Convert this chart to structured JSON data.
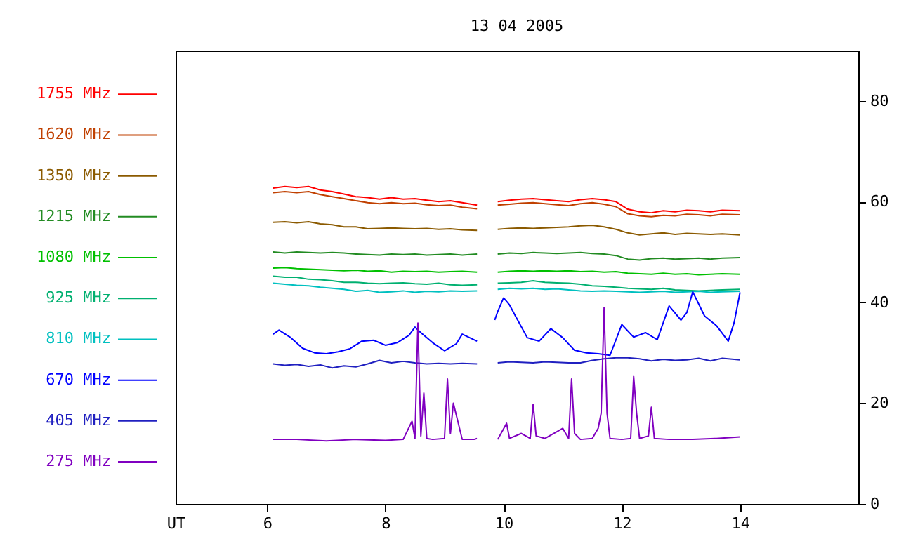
{
  "chart_data": {
    "type": "line",
    "title": "13 04 2005",
    "xlabel": "UT",
    "xlim": [
      4.45,
      16.0
    ],
    "xticks": [
      6,
      8,
      10,
      12,
      14
    ],
    "ylim": [
      0,
      90
    ],
    "yticks": [
      0,
      20,
      40,
      60,
      80
    ],
    "grid": false,
    "legend": "left",
    "marker": "none",
    "line_style": "solid",
    "x": [
      6.1,
      6.3,
      6.5,
      6.7,
      6.9,
      7.1,
      7.3,
      7.5,
      7.7,
      7.9,
      8.1,
      8.3,
      8.5,
      8.7,
      8.9,
      9.1,
      9.3,
      9.55,
      9.7,
      9.9,
      10.1,
      10.3,
      10.5,
      10.7,
      10.9,
      11.1,
      11.3,
      11.5,
      11.7,
      11.9,
      12.1,
      12.3,
      12.5,
      12.7,
      12.9,
      13.1,
      13.3,
      13.5,
      13.7,
      14.0
    ],
    "series": [
      {
        "name": "1755 MHz",
        "color": "#ff0000",
        "values": [
          62.7,
          63.0,
          62.8,
          63.0,
          62.3,
          62.0,
          61.5,
          61.0,
          60.8,
          60.5,
          60.8,
          60.5,
          60.6,
          60.3,
          60.0,
          60.2,
          59.8,
          59.3,
          null,
          60.0,
          60.3,
          60.5,
          60.6,
          60.4,
          60.2,
          60.0,
          60.4,
          60.6,
          60.4,
          60.0,
          58.5,
          58.0,
          57.8,
          58.2,
          58.0,
          58.3,
          58.2,
          58.0,
          58.3,
          58.2
        ]
      },
      {
        "name": "1620 MHz",
        "color": "#c04000",
        "values": [
          61.8,
          62.0,
          61.8,
          62.0,
          61.4,
          61.0,
          60.6,
          60.2,
          59.8,
          59.6,
          59.8,
          59.6,
          59.7,
          59.4,
          59.2,
          59.3,
          58.9,
          58.6,
          null,
          59.3,
          59.5,
          59.7,
          59.8,
          59.6,
          59.4,
          59.2,
          59.6,
          59.8,
          59.5,
          59.0,
          57.6,
          57.2,
          57.0,
          57.3,
          57.2,
          57.5,
          57.4,
          57.2,
          57.5,
          57.4
        ]
      },
      {
        "name": "1350 MHz",
        "color": "#8b5a00",
        "values": [
          55.9,
          56.0,
          55.8,
          56.0,
          55.6,
          55.4,
          55.0,
          55.0,
          54.6,
          54.7,
          54.8,
          54.7,
          54.6,
          54.7,
          54.5,
          54.6,
          54.4,
          54.3,
          null,
          54.5,
          54.7,
          54.8,
          54.7,
          54.8,
          54.9,
          55.0,
          55.2,
          55.3,
          55.0,
          54.5,
          53.8,
          53.4,
          53.6,
          53.8,
          53.5,
          53.7,
          53.6,
          53.5,
          53.6,
          53.4
        ]
      },
      {
        "name": "1215 MHz",
        "color": "#228b22",
        "values": [
          50.0,
          49.8,
          50.0,
          49.9,
          49.8,
          49.9,
          49.8,
          49.6,
          49.5,
          49.4,
          49.6,
          49.5,
          49.6,
          49.4,
          49.5,
          49.6,
          49.4,
          49.6,
          null,
          49.6,
          49.8,
          49.7,
          49.9,
          49.8,
          49.7,
          49.8,
          49.9,
          49.7,
          49.6,
          49.3,
          48.6,
          48.4,
          48.7,
          48.8,
          48.6,
          48.7,
          48.8,
          48.6,
          48.8,
          48.9
        ]
      },
      {
        "name": "1080 MHz",
        "color": "#00c000",
        "values": [
          46.8,
          46.9,
          46.7,
          46.6,
          46.5,
          46.4,
          46.3,
          46.4,
          46.2,
          46.3,
          46.0,
          46.2,
          46.1,
          46.2,
          46.0,
          46.1,
          46.2,
          46.0,
          null,
          46.0,
          46.2,
          46.3,
          46.2,
          46.3,
          46.2,
          46.3,
          46.1,
          46.2,
          46.0,
          46.1,
          45.8,
          45.7,
          45.6,
          45.8,
          45.6,
          45.7,
          45.5,
          45.6,
          45.7,
          45.6
        ]
      },
      {
        "name": "925 MHz",
        "color": "#00b070",
        "values": [
          45.2,
          45.0,
          45.0,
          44.6,
          44.5,
          44.3,
          44.0,
          44.0,
          43.8,
          43.7,
          43.8,
          43.9,
          43.7,
          43.6,
          43.8,
          43.5,
          43.4,
          43.5,
          null,
          43.8,
          43.9,
          44.0,
          44.3,
          44.0,
          43.9,
          43.8,
          43.6,
          43.3,
          43.2,
          43.0,
          42.8,
          42.7,
          42.6,
          42.8,
          42.5,
          42.4,
          42.3,
          42.4,
          42.5,
          42.6
        ]
      },
      {
        "name": "810 MHz",
        "color": "#00c0c0",
        "values": [
          43.8,
          43.6,
          43.4,
          43.3,
          43.0,
          42.8,
          42.6,
          42.2,
          42.4,
          42.0,
          42.1,
          42.3,
          42.0,
          42.2,
          42.1,
          42.3,
          42.2,
          42.3,
          null,
          42.6,
          42.8,
          42.7,
          42.8,
          42.6,
          42.7,
          42.5,
          42.3,
          42.2,
          42.3,
          42.2,
          42.1,
          42.0,
          42.1,
          42.2,
          42.0,
          42.1,
          42.2,
          42.0,
          42.1,
          42.2
        ]
      },
      {
        "name": "670 MHz",
        "color": "#0000ff",
        "x": [
          6.1,
          6.2,
          6.4,
          6.6,
          6.8,
          7.0,
          7.2,
          7.4,
          7.6,
          7.8,
          8.0,
          8.2,
          8.4,
          8.5,
          8.6,
          8.8,
          9.0,
          9.2,
          9.3,
          9.55,
          9.7,
          9.85,
          9.9,
          10.0,
          10.1,
          10.2,
          10.4,
          10.6,
          10.8,
          11.0,
          11.2,
          11.4,
          11.6,
          11.8,
          12.0,
          12.2,
          12.4,
          12.6,
          12.8,
          13.0,
          13.1,
          13.2,
          13.4,
          13.6,
          13.8,
          13.9,
          14.0
        ],
        "values": [
          33.7,
          34.5,
          33.0,
          30.9,
          30.0,
          29.8,
          30.2,
          30.8,
          32.3,
          32.5,
          31.5,
          32.0,
          33.5,
          35.1,
          34.0,
          32.0,
          30.4,
          31.8,
          33.7,
          32.3,
          null,
          36.5,
          38.2,
          40.9,
          39.5,
          37.3,
          33.0,
          32.3,
          34.8,
          33.0,
          30.5,
          30.0,
          29.8,
          29.5,
          35.6,
          33.1,
          34.0,
          32.6,
          39.3,
          36.5,
          38.0,
          42.1,
          37.3,
          35.4,
          32.3,
          36.0,
          42.0
        ]
      },
      {
        "name": "405 MHz",
        "color": "#2020c0",
        "values": [
          27.8,
          27.5,
          27.7,
          27.3,
          27.6,
          27.0,
          27.4,
          27.2,
          27.8,
          28.5,
          28.0,
          28.3,
          28.0,
          27.8,
          27.9,
          27.8,
          27.9,
          27.8,
          null,
          28.0,
          28.2,
          28.1,
          28.0,
          28.2,
          28.1,
          28.0,
          28.0,
          28.5,
          28.8,
          29.0,
          29.0,
          28.8,
          28.4,
          28.7,
          28.5,
          28.6,
          28.9,
          28.4,
          28.9,
          28.6
        ]
      },
      {
        "name": "275 MHz",
        "color": "#8000c0",
        "x": [
          6.1,
          6.5,
          7.0,
          7.5,
          8.0,
          8.3,
          8.45,
          8.5,
          8.55,
          8.6,
          8.65,
          8.7,
          8.8,
          9.0,
          9.05,
          9.1,
          9.15,
          9.3,
          9.5,
          9.55,
          9.7,
          9.9,
          10.05,
          10.1,
          10.3,
          10.45,
          10.5,
          10.55,
          10.7,
          11.0,
          11.1,
          11.15,
          11.2,
          11.3,
          11.5,
          11.6,
          11.65,
          11.7,
          11.75,
          11.8,
          12.0,
          12.15,
          12.2,
          12.25,
          12.3,
          12.45,
          12.5,
          12.55,
          12.8,
          13.2,
          13.6,
          14.0
        ],
        "values": [
          12.8,
          12.8,
          12.5,
          12.8,
          12.6,
          12.8,
          16.4,
          13.0,
          35.9,
          13.5,
          22.0,
          13.0,
          12.8,
          13.0,
          24.8,
          14.0,
          20.0,
          12.8,
          12.8,
          13.0,
          null,
          12.8,
          16.0,
          13.0,
          14.0,
          13.0,
          19.8,
          13.5,
          13.0,
          15.0,
          13.0,
          24.8,
          14.0,
          12.8,
          13.0,
          15.0,
          18.0,
          39.0,
          18.0,
          13.0,
          12.8,
          13.0,
          25.3,
          18.0,
          13.0,
          13.5,
          19.2,
          13.0,
          12.8,
          12.8,
          13.0,
          13.3
        ]
      }
    ]
  }
}
